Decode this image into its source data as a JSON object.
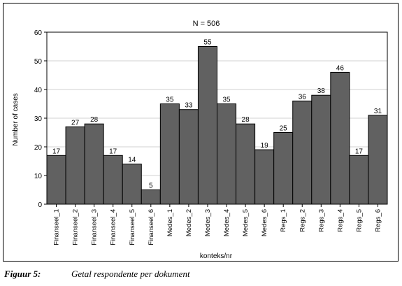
{
  "chart_data": {
    "type": "bar",
    "title": "N = 506",
    "xlabel": "konteks/nr",
    "ylabel": "Number of cases",
    "ylim": [
      0,
      60
    ],
    "yticks": [
      0,
      10,
      20,
      30,
      40,
      50,
      60
    ],
    "grid": true,
    "categories": [
      "Finanseel_1",
      "Finanseel_2",
      "Finanseel_3",
      "Finanseel_4",
      "Finanseel_5",
      "Finanseel_6",
      "Medes_1",
      "Medes_2",
      "Medes_3",
      "Medes_4",
      "Medes_5",
      "Medes_6",
      "Regs_1",
      "Regs_2",
      "Regs_3",
      "Regs_4",
      "Regs_5",
      "Regs_6"
    ],
    "values": [
      17,
      27,
      28,
      17,
      14,
      5,
      35,
      33,
      55,
      35,
      28,
      19,
      25,
      36,
      38,
      46,
      17,
      31
    ],
    "bar_color": "#616161"
  },
  "caption": {
    "label": "Figuur 5:",
    "text": "Getal respondente per dokument"
  }
}
